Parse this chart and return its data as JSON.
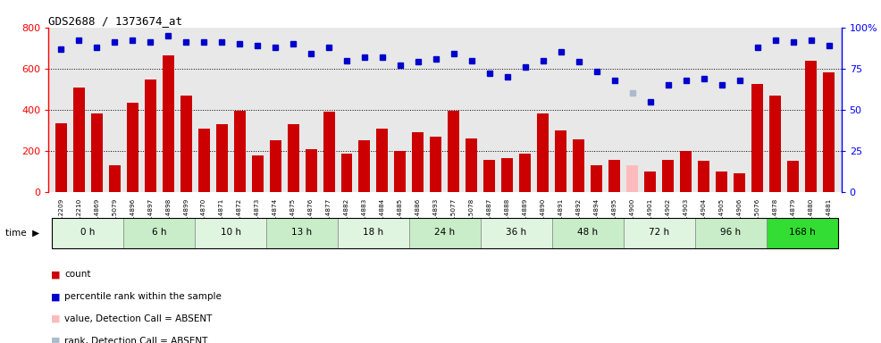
{
  "title": "GDS2688 / 1373674_at",
  "samples": [
    "GSM112209",
    "GSM112210",
    "GSM114869",
    "GSM115079",
    "GSM114896",
    "GSM114897",
    "GSM114898",
    "GSM114899",
    "GSM114870",
    "GSM114871",
    "GSM114872",
    "GSM114873",
    "GSM114874",
    "GSM114875",
    "GSM114876",
    "GSM114877",
    "GSM114882",
    "GSM114883",
    "GSM114884",
    "GSM114885",
    "GSM114886",
    "GSM114893",
    "GSM115077",
    "GSM115078",
    "GSM114887",
    "GSM114888",
    "GSM114889",
    "GSM114890",
    "GSM114891",
    "GSM114892",
    "GSM114894",
    "GSM114895",
    "GSM114900",
    "GSM114901",
    "GSM114902",
    "GSM114903",
    "GSM114904",
    "GSM114905",
    "GSM114906",
    "GSM115076",
    "GSM114878",
    "GSM114879",
    "GSM114880",
    "GSM114881"
  ],
  "counts": [
    335,
    510,
    380,
    130,
    435,
    545,
    665,
    470,
    310,
    330,
    395,
    180,
    250,
    330,
    210,
    390,
    185,
    250,
    310,
    200,
    290,
    270,
    395,
    260,
    155,
    165,
    185,
    380,
    300,
    255,
    130,
    155,
    130,
    100,
    155,
    200,
    150,
    100,
    90,
    525,
    470,
    150,
    640,
    580
  ],
  "ranks": [
    87,
    92,
    88,
    91,
    92,
    91,
    95,
    91,
    91,
    91,
    90,
    89,
    88,
    90,
    84,
    88,
    80,
    82,
    82,
    77,
    79,
    81,
    84,
    80,
    72,
    70,
    76,
    80,
    85,
    79,
    73,
    68,
    60,
    55,
    65,
    68,
    69,
    65,
    68,
    88,
    92,
    91,
    92,
    89
  ],
  "absent_indices": [
    32
  ],
  "absent_rank_idx": 32,
  "absent_count": 130,
  "absent_rank": 60,
  "time_groups": [
    {
      "label": "0 h",
      "start": 0,
      "end": 4,
      "color": "#e0f5e0"
    },
    {
      "label": "6 h",
      "start": 4,
      "end": 8,
      "color": "#c8edc8"
    },
    {
      "label": "10 h",
      "start": 8,
      "end": 12,
      "color": "#e0f5e0"
    },
    {
      "label": "13 h",
      "start": 12,
      "end": 16,
      "color": "#c8edc8"
    },
    {
      "label": "18 h",
      "start": 16,
      "end": 20,
      "color": "#e0f5e0"
    },
    {
      "label": "24 h",
      "start": 20,
      "end": 24,
      "color": "#c8edc8"
    },
    {
      "label": "36 h",
      "start": 24,
      "end": 28,
      "color": "#e0f5e0"
    },
    {
      "label": "48 h",
      "start": 28,
      "end": 32,
      "color": "#c8edc8"
    },
    {
      "label": "72 h",
      "start": 32,
      "end": 36,
      "color": "#e0f5e0"
    },
    {
      "label": "96 h",
      "start": 36,
      "end": 40,
      "color": "#c8edc8"
    },
    {
      "label": "168 h",
      "start": 40,
      "end": 44,
      "color": "#33dd33"
    }
  ],
  "bar_color": "#cc0000",
  "absent_bar_color": "#ffbbbb",
  "rank_color": "#0000cc",
  "absent_rank_color": "#aabbcc",
  "ylim_left": [
    0,
    800
  ],
  "ylim_right": [
    0,
    100
  ],
  "yticks_left": [
    0,
    200,
    400,
    600,
    800
  ],
  "yticks_right": [
    0,
    25,
    50,
    75,
    100
  ],
  "ytick_labels_right": [
    "0",
    "25",
    "50",
    "75",
    "100%"
  ],
  "plot_bg_color": "#e8e8e8"
}
